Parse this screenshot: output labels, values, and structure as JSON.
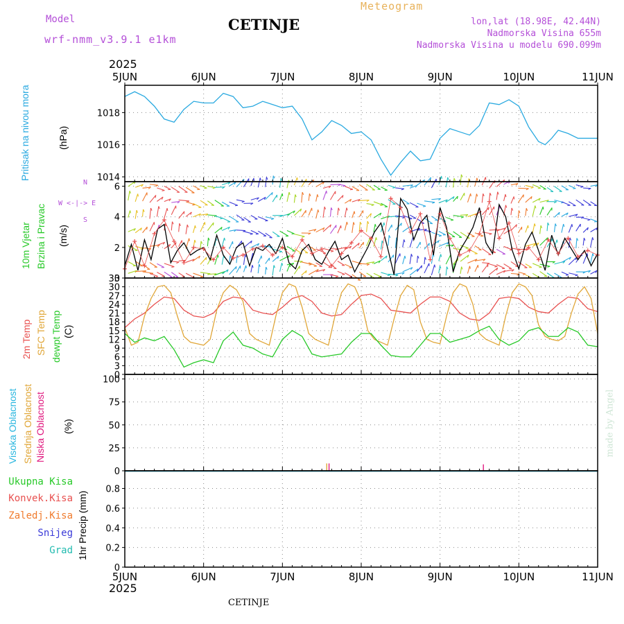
{
  "header": {
    "model_label": "Model",
    "model_name": "wrf-nmm_v3.9.1 e1km",
    "station": "CETINJE",
    "meteogram_label": "Meteogram",
    "coords": "lon,lat (18.98E, 42.44N)",
    "elevation": "Nadmorska Visina 655m",
    "model_elevation": "Nadmorska Visina u modelu 690.099m",
    "year_top": "2025",
    "year_bottom": "2025",
    "footer_station": "CETINJE",
    "credit": "made by Angel"
  },
  "x_ticks": [
    "5JUN",
    "6JUN",
    "7JUN",
    "8JUN",
    "9JUN",
    "10JUN",
    "11JUN"
  ],
  "panel_labels": {
    "pressure": {
      "name": "Pritisak na nivou mora",
      "unit": "(hPa)"
    },
    "wind": {
      "name1": "10m Vjetar",
      "name2": "Brzina i Pravac",
      "unit": "(m/s)",
      "compass": "W  <-|->  E",
      "n": "N",
      "s": "S"
    },
    "temp": {
      "t2m": "2m Temp",
      "sfc": "SFC Temp",
      "dew": "dewpt Temp",
      "unit": "(C)"
    },
    "cloud": {
      "high": "Visoka Oblacnost",
      "mid": "Srednja Oblacnost",
      "low": "Niska Oblacnost",
      "unit": "(%)"
    },
    "precip": {
      "unit": "1hr Precip (mm)",
      "legend": [
        "Ukupna Kisa",
        "Konvek.Kisa",
        "Zaledj.Kisa",
        "Snijeg",
        "Grad"
      ]
    }
  },
  "colors": {
    "pressure": "#29a9e0",
    "t2m": "#e8504f",
    "sfc": "#e0a637",
    "dew": "#27c928",
    "wind_line": "#000000",
    "gust_marker": "#e8504f",
    "high_cloud": "#29b6df",
    "mid_cloud": "#e0a637",
    "low_cloud": "#e0197f",
    "total_rain": "#27c928",
    "conv_rain": "#e8504f",
    "frz_rain": "#f07b2d",
    "snow": "#3a3ad8",
    "hail": "#22bbb0"
  },
  "chart_data": [
    {
      "type": "line",
      "ylabel": "(hPa)",
      "ylim": [
        1013.7,
        1019.7
      ],
      "yticks": [
        1014,
        1016,
        1018
      ],
      "x_unit": "hours since 5JUN 00",
      "series": [
        {
          "name": "Pritisak na nivou mora",
          "x": [
            0,
            3,
            6,
            9,
            12,
            15,
            18,
            21,
            24,
            27,
            30,
            33,
            36,
            39,
            42,
            45,
            48,
            51,
            54,
            57,
            60,
            63,
            66,
            69,
            72,
            75,
            78,
            81,
            84,
            87,
            90,
            93,
            96,
            99,
            102,
            105,
            108,
            111,
            114,
            117,
            120,
            123,
            126,
            128,
            130,
            132,
            135,
            138,
            141,
            144
          ],
          "values": [
            1019.0,
            1019.3,
            1019.0,
            1018.4,
            1017.6,
            1017.4,
            1018.2,
            1018.7,
            1018.6,
            1018.6,
            1019.2,
            1019.0,
            1018.3,
            1018.4,
            1018.7,
            1018.5,
            1018.3,
            1018.4,
            1017.6,
            1016.3,
            1016.8,
            1017.5,
            1017.2,
            1016.7,
            1016.8,
            1016.3,
            1015.1,
            1014.1,
            1014.9,
            1015.6,
            1015.0,
            1015.1,
            1016.4,
            1017.0,
            1016.8,
            1016.6,
            1017.2,
            1018.6,
            1018.5,
            1018.8,
            1018.4,
            1017.1,
            1016.2,
            1016.0,
            1016.4,
            1016.9,
            1016.7,
            1016.4,
            1016.4,
            1016.4
          ]
        }
      ]
    },
    {
      "type": "line",
      "ylabel": "(m/s)",
      "ylim": [
        0,
        6.3
      ],
      "yticks": [
        0,
        2,
        4,
        6
      ],
      "x_unit": "hours since 5JUN 00",
      "series": [
        {
          "name": "10m Vjetar",
          "x": [
            0,
            2,
            4,
            6,
            8,
            10,
            12,
            14,
            16,
            18,
            20,
            22,
            24,
            26,
            28,
            30,
            32,
            34,
            36,
            38,
            40,
            42,
            44,
            46,
            48,
            50,
            52,
            54,
            56,
            58,
            60,
            62,
            64,
            66,
            68,
            70,
            72,
            74,
            76,
            78,
            80,
            82,
            84,
            86,
            88,
            90,
            92,
            94,
            96,
            98,
            100,
            102,
            104,
            106,
            108,
            110,
            112,
            114,
            116,
            118,
            120,
            122,
            124,
            126,
            128,
            130,
            132,
            134,
            136,
            138,
            140,
            142,
            144
          ],
          "values": [
            0.8,
            2.2,
            0.5,
            2.5,
            1.2,
            3.2,
            3.5,
            1.0,
            1.8,
            2.3,
            1.5,
            1.8,
            2.0,
            1.2,
            2.8,
            1.5,
            0.9,
            2.0,
            2.3,
            0.8,
            2.0,
            1.8,
            2.2,
            1.6,
            2.6,
            1.0,
            0.6,
            1.8,
            2.2,
            1.2,
            0.9,
            1.7,
            2.4,
            1.2,
            1.5,
            0.4,
            1.2,
            2.0,
            3.0,
            3.6,
            2.0,
            0.2,
            5.2,
            4.5,
            2.5,
            3.6,
            4.1,
            1.5,
            4.6,
            3.3,
            0.4,
            1.8,
            2.5,
            3.3,
            4.6,
            2.3,
            1.6,
            4.8,
            4.0,
            1.8,
            0.6,
            2.2,
            3.0,
            1.8,
            0.5,
            2.8,
            1.5,
            2.6,
            1.9,
            1.2,
            1.8,
            0.8,
            1.6
          ]
        },
        {
          "name": "udari",
          "x": [
            0,
            3,
            6,
            9,
            12,
            15,
            18,
            21,
            24,
            27,
            30,
            33,
            36,
            39,
            42,
            45,
            48,
            51,
            54,
            57,
            60,
            63,
            66,
            69,
            72,
            75,
            78,
            81,
            84,
            87,
            90,
            93,
            96,
            99,
            102,
            105,
            108,
            111,
            114,
            117,
            120,
            123,
            126,
            129,
            132,
            135,
            138,
            141,
            144
          ],
          "values": [
            0.6,
            2.4,
            0.8,
            2.9,
            3.8,
            2.4,
            1.0,
            2.0,
            1.9,
            1.2,
            2.0,
            1.3,
            1.5,
            1.9,
            2.1,
            1.5,
            2.0,
            1.4,
            2.5,
            1.6,
            1.9,
            0.8,
            1.6,
            2.3,
            3.1,
            2.6,
            1.4,
            5.2,
            4.6,
            3.0,
            4.2,
            1.2,
            4.2,
            2.6,
            1.5,
            1.8,
            2.9,
            5.0,
            2.6,
            3.6,
            1.6,
            2.0,
            1.2,
            2.5,
            1.6,
            2.6,
            1.4,
            1.8,
            1.5
          ]
        }
      ]
    },
    {
      "type": "line",
      "ylabel": "(C)",
      "ylim": [
        0,
        33
      ],
      "yticks": [
        0,
        3,
        6,
        9,
        12,
        15,
        18,
        21,
        24,
        27,
        30,
        33
      ],
      "x_unit": "hours since 5JUN 00",
      "series": [
        {
          "name": "2m Temp",
          "x": [
            0,
            3,
            6,
            9,
            12,
            15,
            18,
            21,
            24,
            27,
            30,
            33,
            36,
            39,
            42,
            45,
            48,
            51,
            54,
            57,
            60,
            63,
            66,
            69,
            72,
            75,
            78,
            81,
            84,
            87,
            90,
            93,
            96,
            99,
            102,
            105,
            108,
            111,
            114,
            117,
            120,
            123,
            126,
            129,
            132,
            135,
            138,
            141,
            144
          ],
          "values": [
            16,
            19,
            21,
            24,
            26.5,
            26,
            22,
            20,
            19.5,
            21,
            25,
            26.5,
            26,
            22,
            21,
            20.5,
            23,
            26,
            27,
            25,
            21,
            20,
            20.5,
            24,
            27,
            27.5,
            26,
            22,
            21.5,
            21,
            24,
            26.5,
            26.5,
            25,
            21,
            19,
            18.5,
            21,
            26,
            26.5,
            26,
            23,
            21.5,
            21,
            24,
            26.5,
            26,
            22.5,
            21.5
          ]
        },
        {
          "name": "SFC Temp",
          "x": [
            0,
            2,
            4,
            6,
            8,
            10,
            12,
            14,
            16,
            18,
            20,
            22,
            24,
            26,
            28,
            30,
            32,
            34,
            36,
            38,
            40,
            42,
            44,
            46,
            48,
            50,
            52,
            54,
            56,
            58,
            60,
            62,
            64,
            66,
            68,
            70,
            72,
            74,
            76,
            78,
            80,
            82,
            84,
            86,
            88,
            90,
            92,
            94,
            96,
            98,
            100,
            102,
            104,
            106,
            108,
            110,
            112,
            114,
            116,
            118,
            120,
            122,
            124,
            126,
            128,
            130,
            132,
            134,
            136,
            138,
            140,
            142,
            144
          ],
          "values": [
            16,
            10,
            11,
            20,
            26,
            30,
            30.5,
            28,
            20,
            13,
            11,
            10.5,
            10,
            12,
            22,
            28,
            30.5,
            29,
            25,
            14,
            12,
            11,
            10,
            20,
            28,
            31,
            30,
            23,
            14,
            12,
            11,
            10,
            20,
            28,
            31,
            30,
            25,
            15,
            12,
            11,
            10,
            19,
            27,
            30.5,
            29,
            18,
            12,
            11,
            10.5,
            20,
            28,
            31,
            30,
            24,
            14,
            12,
            11,
            10,
            20,
            28,
            31,
            30,
            27,
            17,
            13,
            12,
            11.5,
            13,
            21,
            27.5,
            30,
            26,
            14
          ]
        },
        {
          "name": "dewpt Temp",
          "x": [
            0,
            3,
            6,
            9,
            12,
            15,
            18,
            21,
            24,
            27,
            30,
            33,
            36,
            39,
            42,
            45,
            48,
            51,
            54,
            57,
            60,
            63,
            66,
            69,
            72,
            75,
            78,
            81,
            84,
            87,
            90,
            93,
            96,
            99,
            102,
            105,
            108,
            111,
            114,
            117,
            120,
            123,
            126,
            129,
            132,
            135,
            138,
            141,
            144
          ],
          "values": [
            14,
            11,
            12.5,
            11.5,
            13,
            8.5,
            2.5,
            4,
            5,
            4,
            11.5,
            14.5,
            10,
            9,
            7,
            6,
            12,
            15,
            13,
            7,
            6,
            6.5,
            7,
            11,
            14,
            14,
            10,
            6.5,
            6,
            6,
            10,
            14,
            14,
            11,
            12,
            13,
            15,
            16.5,
            12,
            10,
            11.5,
            15,
            16,
            13,
            13,
            16,
            14.5,
            10,
            9.5
          ]
        }
      ]
    },
    {
      "type": "bar",
      "ylabel": "(%)",
      "ylim": [
        0,
        105
      ],
      "yticks": [
        0,
        25,
        50,
        75,
        100
      ],
      "x_unit": "hours since 5JUN 00",
      "series": [
        {
          "name": "Visoka Oblacnost",
          "x": [],
          "values": []
        },
        {
          "name": "Srednja Oblacnost",
          "x": [
            61.5
          ],
          "values": [
            8
          ]
        },
        {
          "name": "Niska Oblacnost",
          "x": [
            62.2,
            109.2
          ],
          "values": [
            8,
            7
          ]
        }
      ]
    },
    {
      "type": "bar",
      "ylabel": "1hr Precip (mm)",
      "ylim": [
        0,
        0.98
      ],
      "yticks": [
        0,
        0.2,
        0.4,
        0.6,
        0.8
      ],
      "series": []
    }
  ]
}
